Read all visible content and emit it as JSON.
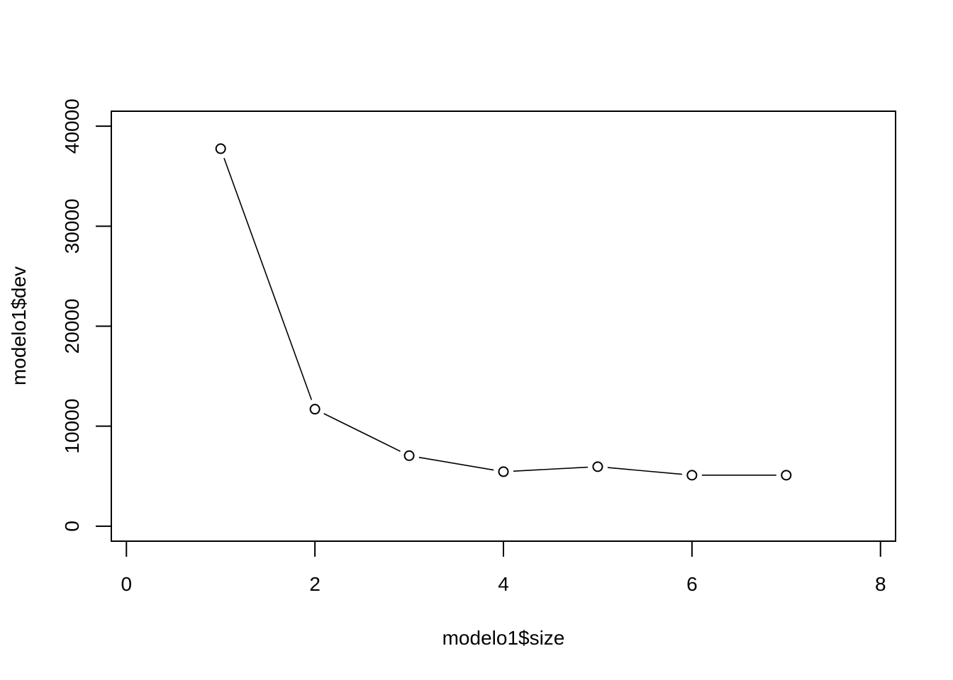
{
  "chart_data": {
    "type": "line",
    "title": "",
    "xlabel": "modelo1$size",
    "ylabel": "modelo1$dev",
    "xlim": [
      -0.16,
      8.16
    ],
    "ylim": [
      -1500,
      41500
    ],
    "x_ticks": [
      0,
      2,
      4,
      6,
      8
    ],
    "x_tick_labels": [
      "0",
      "2",
      "4",
      "6",
      "8"
    ],
    "y_ticks": [
      0,
      10000,
      20000,
      30000,
      40000
    ],
    "y_tick_labels": [
      "0",
      "10000",
      "20000",
      "30000",
      "40000"
    ],
    "grid": false,
    "legend": "none",
    "marker": "open-circle",
    "line_color": "#000000",
    "x": [
      1,
      2,
      3,
      4,
      5,
      6,
      7
    ],
    "y": [
      37750,
      11700,
      7050,
      5450,
      5950,
      5100,
      5100
    ]
  }
}
